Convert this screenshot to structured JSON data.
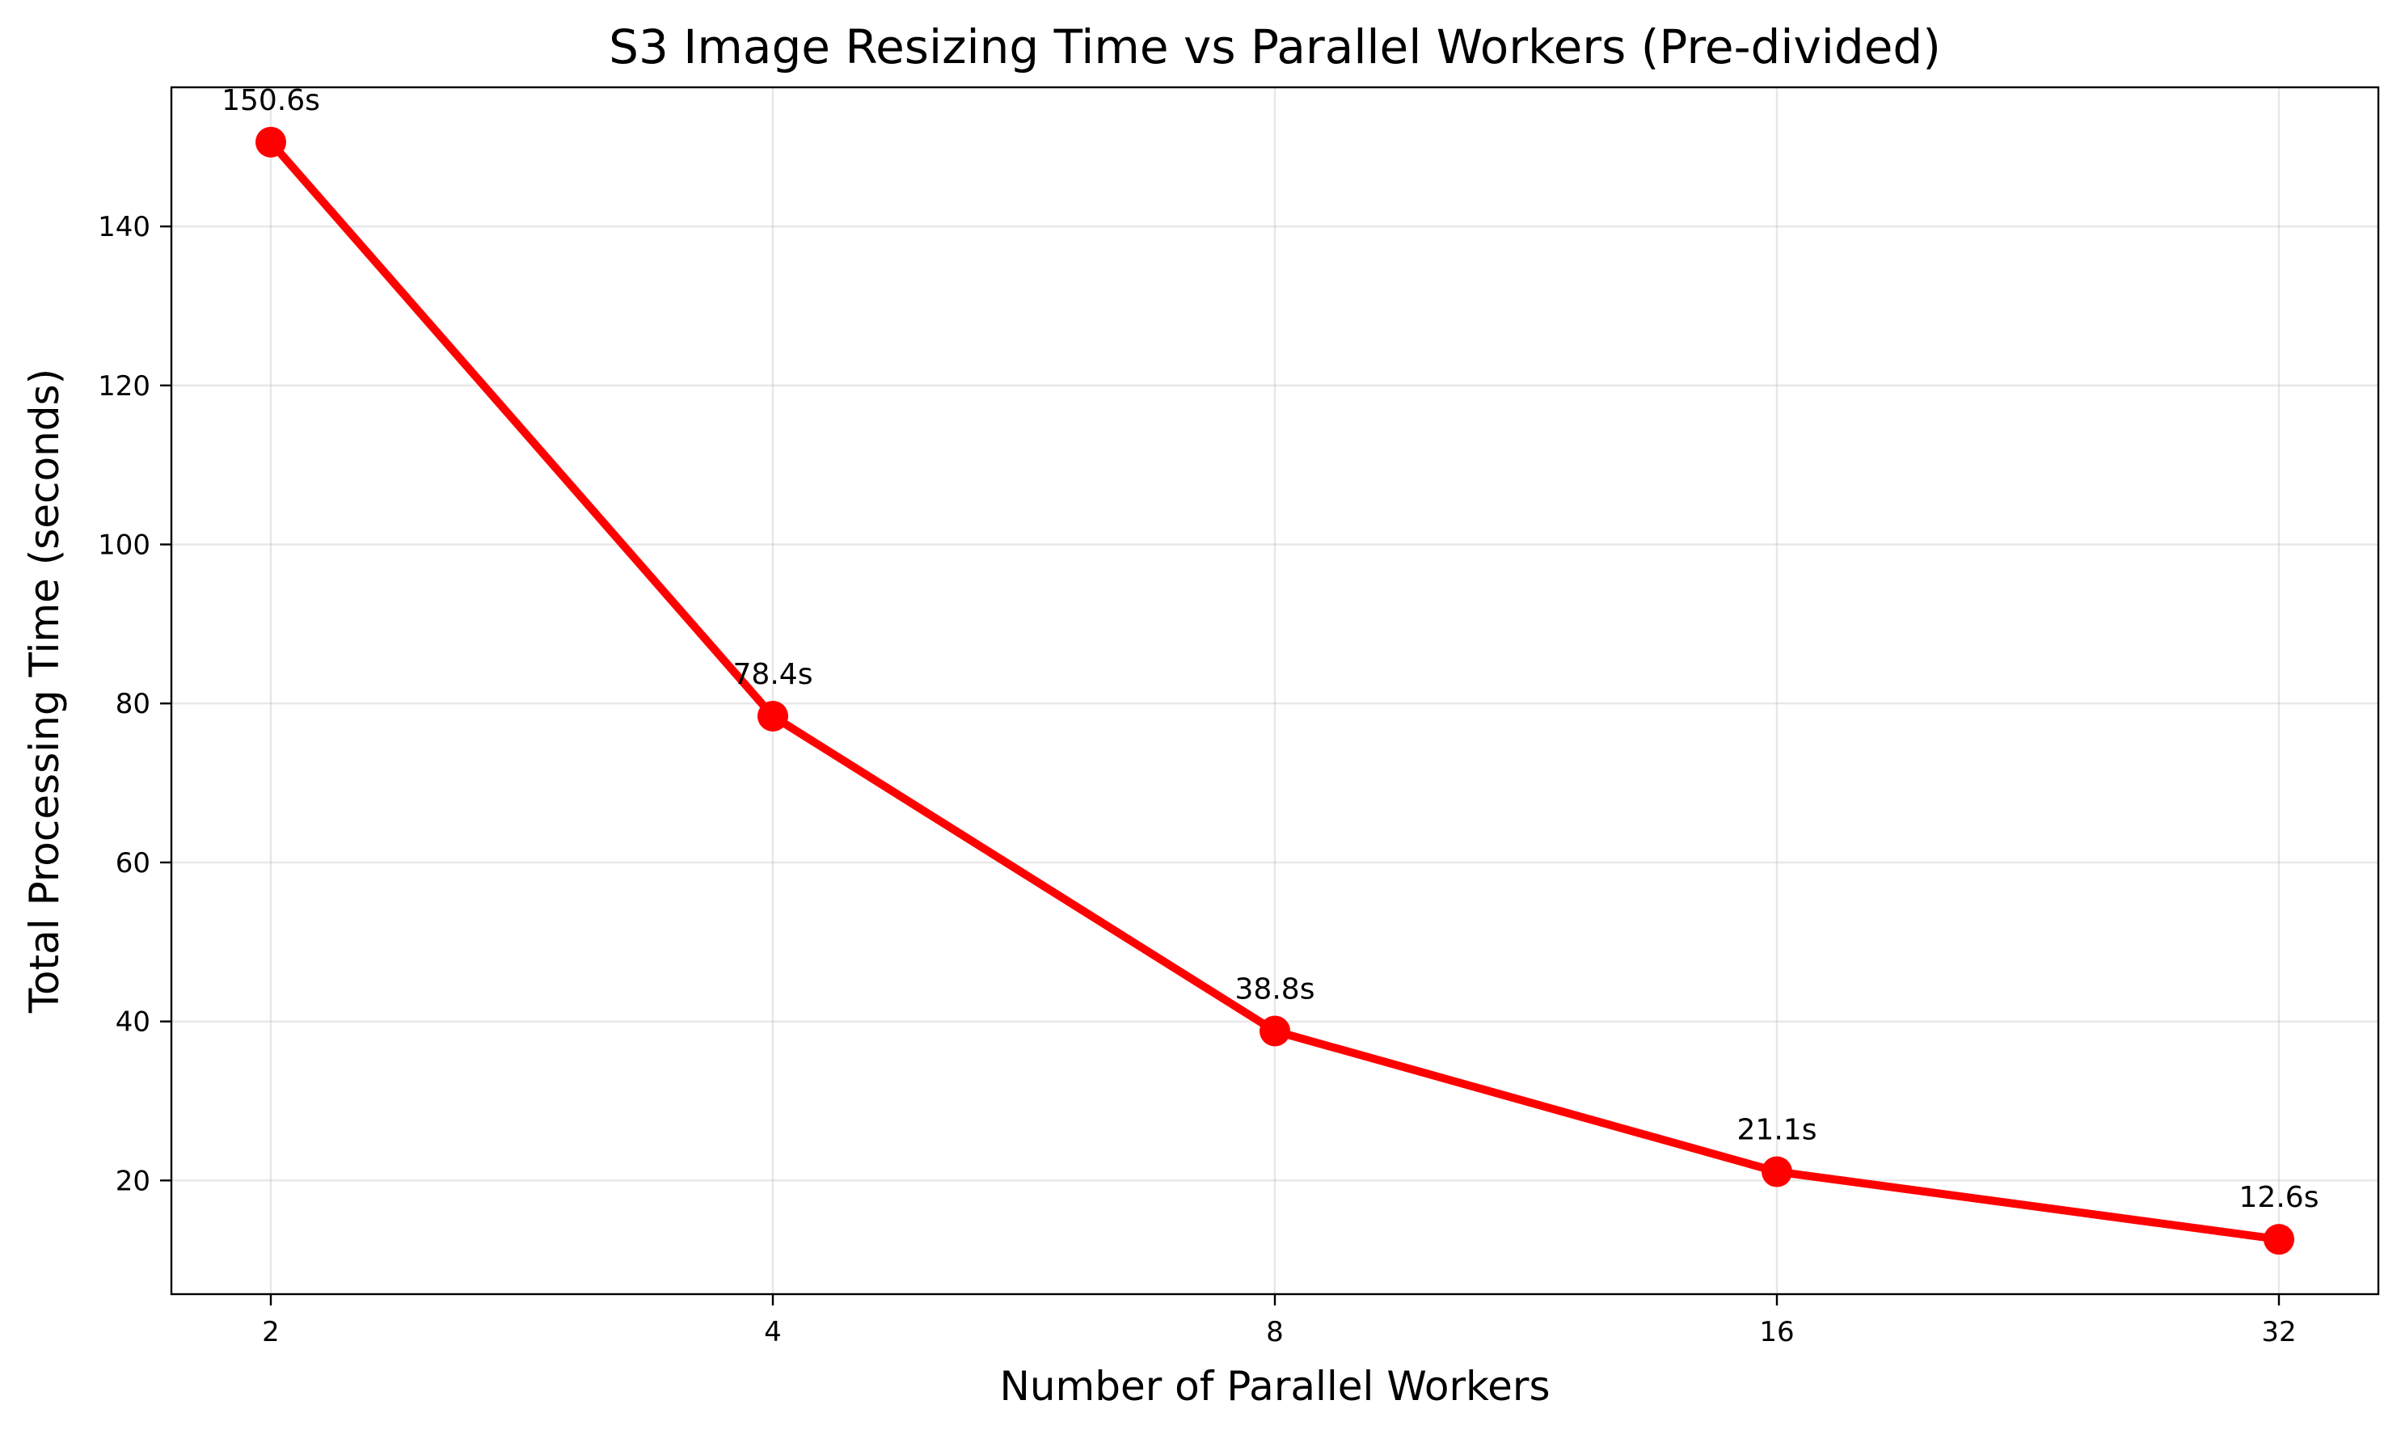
{
  "chart_data": {
    "type": "line",
    "title": "S3 Image Resizing Time vs Parallel Workers (Pre-divided)",
    "xlabel": "Number of Parallel Workers",
    "ylabel": "Total Processing Time (seconds)",
    "x_scale": "log2",
    "x": [
      2,
      4,
      8,
      16,
      32
    ],
    "x_tick_labels": [
      "2",
      "4",
      "8",
      "16",
      "32"
    ],
    "series": [
      {
        "values": [
          150.6,
          78.4,
          38.8,
          21.1,
          12.6
        ],
        "color": "#ff0000",
        "marker": "circle"
      }
    ],
    "data_labels": [
      "150.6s",
      "78.4s",
      "38.8s",
      "21.1s",
      "12.6s"
    ],
    "y_ticks": [
      20,
      40,
      60,
      80,
      100,
      120,
      140
    ],
    "ylim": [
      5.7,
      157.5
    ],
    "grid": true
  }
}
